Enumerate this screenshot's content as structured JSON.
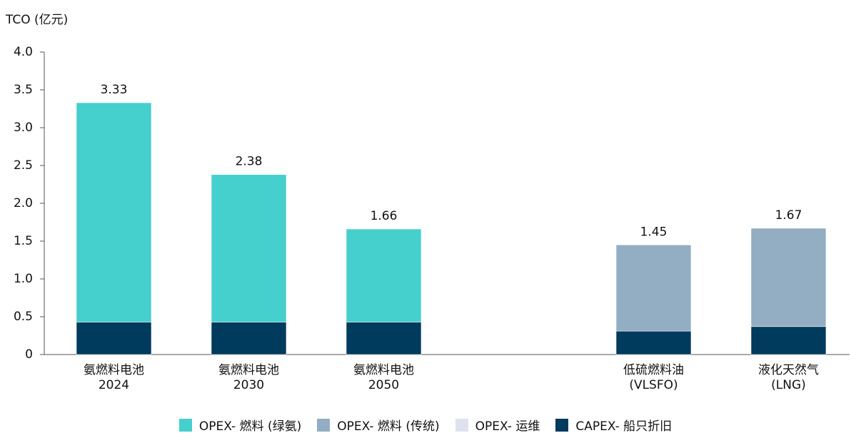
{
  "chart_data": {
    "type": "bar",
    "stacked": true,
    "y_axis_label": "TCO (亿元)",
    "categories": [
      "氨燃料电池\n2024",
      "氨燃料电池\n2030",
      "氨燃料电池\n2050",
      null,
      "低硫燃料油\n(VLSFO)",
      "液化天然气\n(LNG)"
    ],
    "series": [
      {
        "name": "CAPEX- 船只折旧",
        "color": "#003a5d",
        "values": [
          0.43,
          0.43,
          0.43,
          null,
          0.31,
          0.37
        ]
      },
      {
        "name": "OPEX- 运维",
        "color": "#dde3ee",
        "values": [
          null,
          null,
          null,
          null,
          null,
          null
        ]
      },
      {
        "name": "OPEX- 燃料 (传统)",
        "color": "#93adc3",
        "values": [
          null,
          null,
          null,
          null,
          1.14,
          1.3
        ]
      },
      {
        "name": "OPEX- 燃料 (绿氨)",
        "color": "#45cfcd",
        "values": [
          2.9,
          1.95,
          1.23,
          null,
          null,
          null
        ]
      }
    ],
    "legend_order": [
      3,
      2,
      1,
      0
    ],
    "totals": [
      3.33,
      2.38,
      1.66,
      null,
      1.45,
      1.67
    ],
    "ylim": [
      0,
      4
    ],
    "yticks": [
      0,
      0.5,
      {
        "value": 1,
        "label": "1.0"
      },
      1.5,
      {
        "value": 2,
        "label": "2.0"
      },
      2.5,
      {
        "value": 3,
        "label": "3.0"
      },
      3.5,
      {
        "value": 4,
        "label": "4.0"
      }
    ],
    "grid": false,
    "legend": "bottom"
  }
}
